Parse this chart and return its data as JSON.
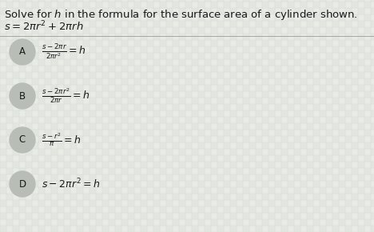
{
  "bg_color": "#e8ebe6",
  "text_color": "#1a1a1a",
  "title_line1": "Solve for $h$ in the formula for the surface area of a cylinder shown.",
  "title_line2": "$s = 2\\pi r^2 + 2\\pi rh$",
  "options": [
    {
      "label": "A",
      "formula": "$\\frac{s-2\\pi r}{2\\pi r^2} = h$"
    },
    {
      "label": "B",
      "formula": "$\\frac{s-2\\pi r^2}{2\\pi r} = h$"
    },
    {
      "label": "C",
      "formula": "$\\frac{s-r^2}{\\pi} = h$"
    },
    {
      "label": "D",
      "formula": "$s - 2\\pi r^2 = h$"
    }
  ],
  "circle_color": "#b8bdb6",
  "separator_color": "#9999aa",
  "title_fontsize": 9.5,
  "formula_fontsize": 9.0,
  "label_fontsize": 8.5,
  "figwidth": 4.68,
  "figheight": 2.9,
  "dpi": 100
}
